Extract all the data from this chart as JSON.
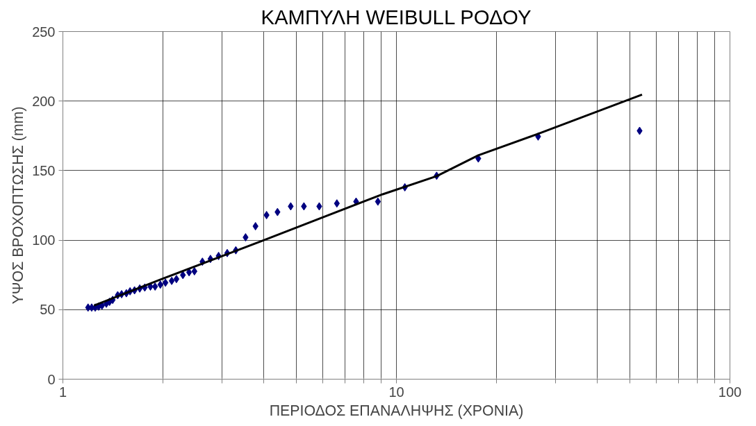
{
  "chart_data": {
    "type": "scatter",
    "title": "ΚΑΜΠΥΛΗ WEIBULL ΡΟΔΟΥ",
    "xlabel": "ΠΕΡΙΟΔΟΣ ΕΠΑΝΑΛΗΨΗΣ (ΧΡΟΝΙΑ)",
    "ylabel": "ΥΨΟΣ ΒΡΟΧΟΠΤΩΣΗΣ (mm)",
    "log": "x",
    "grid": true,
    "xlim": [
      1,
      100
    ],
    "ylim": [
      0,
      250
    ],
    "xticks": [
      1,
      {
        "value": 2,
        "label": null
      },
      {
        "value": 3,
        "label": null
      },
      {
        "value": 4,
        "label": null
      },
      {
        "value": 5,
        "label": null
      },
      {
        "value": 6,
        "label": null
      },
      {
        "value": 7,
        "label": null
      },
      {
        "value": 8,
        "label": null
      },
      {
        "value": 9,
        "label": null
      },
      10,
      {
        "value": 20,
        "label": null
      },
      {
        "value": 30,
        "label": null
      },
      {
        "value": 40,
        "label": null
      },
      {
        "value": 50,
        "label": null
      },
      {
        "value": 60,
        "label": null
      },
      {
        "value": 70,
        "label": null
      },
      {
        "value": 80,
        "label": null
      },
      {
        "value": 90,
        "label": null
      },
      100
    ],
    "yticks": [
      0,
      50,
      100,
      150,
      200,
      250
    ],
    "series": [
      {
        "marker": "diamond",
        "color": "#000080",
        "x": [
          1.19,
          1.22,
          1.25,
          1.28,
          1.31,
          1.35,
          1.38,
          1.41,
          1.46,
          1.5,
          1.55,
          1.59,
          1.64,
          1.7,
          1.76,
          1.83,
          1.89,
          1.96,
          2.03,
          2.12,
          2.19,
          2.29,
          2.39,
          2.48,
          2.62,
          2.77,
          2.93,
          3.11,
          3.3,
          3.53,
          3.78,
          4.08,
          4.4,
          4.82,
          5.28,
          5.87,
          6.63,
          7.57,
          8.8,
          10.6,
          13.2,
          17.6,
          26.6,
          53.6
        ],
        "values": [
          51.5,
          51.5,
          51.5,
          52.2,
          52.9,
          54.3,
          55.6,
          57,
          60.4,
          61.1,
          61.8,
          63.2,
          63.9,
          65.2,
          65.9,
          66.6,
          66.6,
          68,
          69.4,
          70.7,
          72,
          74.9,
          76.9,
          77.6,
          84.5,
          86.5,
          88.6,
          90.7,
          92.7,
          102,
          110,
          118,
          120.2,
          124.3,
          124.3,
          124.3,
          126.4,
          127.7,
          127.7,
          138,
          146.3,
          158.7,
          174.5,
          178.6
        ]
      },
      {
        "type": "line",
        "marker": "none",
        "line_style": "solid",
        "color": "#000000",
        "x": [
          1.24,
          1.98,
          3.97,
          5.95,
          9.1,
          13.2,
          17.6,
          26.6,
          54.5
        ],
        "values": [
          53,
          72,
          99.6,
          116,
          133,
          146,
          161,
          176.5,
          204.7
        ]
      }
    ]
  }
}
